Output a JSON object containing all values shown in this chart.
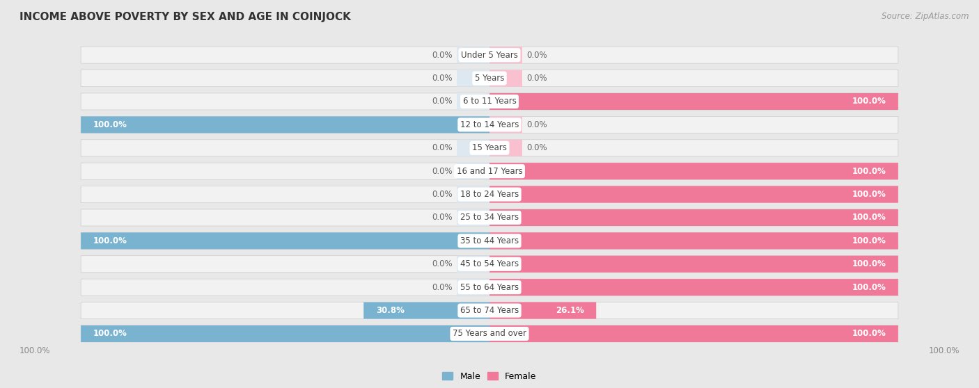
{
  "title": "INCOME ABOVE POVERTY BY SEX AND AGE IN COINJOCK",
  "source": "Source: ZipAtlas.com",
  "categories": [
    "Under 5 Years",
    "5 Years",
    "6 to 11 Years",
    "12 to 14 Years",
    "15 Years",
    "16 and 17 Years",
    "18 to 24 Years",
    "25 to 34 Years",
    "35 to 44 Years",
    "45 to 54 Years",
    "55 to 64 Years",
    "65 to 74 Years",
    "75 Years and over"
  ],
  "male": [
    0.0,
    0.0,
    0.0,
    100.0,
    0.0,
    0.0,
    0.0,
    0.0,
    100.0,
    0.0,
    0.0,
    30.8,
    100.0
  ],
  "female": [
    0.0,
    0.0,
    100.0,
    0.0,
    0.0,
    100.0,
    100.0,
    100.0,
    100.0,
    100.0,
    100.0,
    26.1,
    100.0
  ],
  "male_color": "#7ab3d0",
  "female_color": "#f07898",
  "bg_color": "#e8e8e8",
  "row_bg_color": "#f5f5f5",
  "bar_inner_bg": "#dde8f0",
  "bar_inner_pink": "#f9c0d0",
  "legend_male": "Male",
  "legend_female": "Female",
  "title_fontsize": 11,
  "source_fontsize": 8.5,
  "label_fontsize": 8.5,
  "category_fontsize": 8.5,
  "axis_label_fontsize": 8.5,
  "max_val": 100
}
